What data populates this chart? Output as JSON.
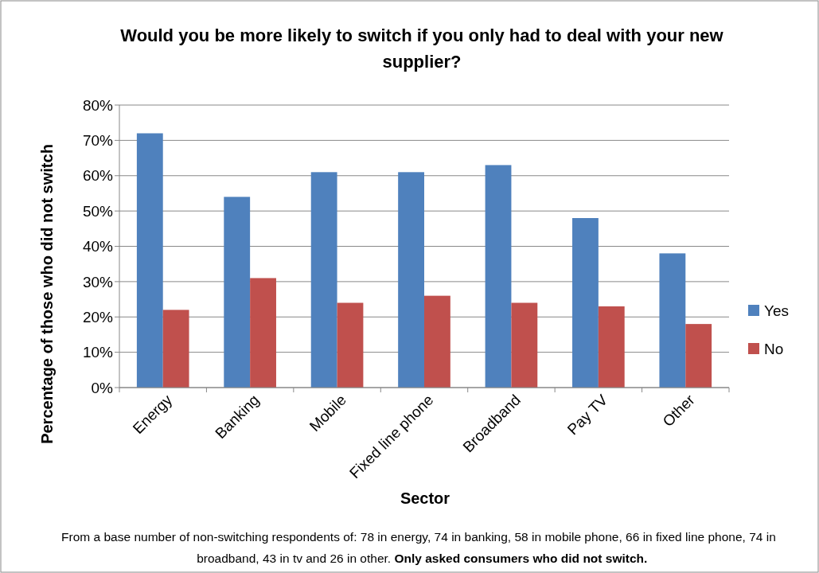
{
  "chart_data": {
    "type": "bar",
    "title": "Would you be more likely to switch if you only had to deal with your new supplier?",
    "xlabel": "Sector",
    "ylabel": "Percentage of those who did not switch",
    "categories": [
      "Energy",
      "Banking",
      "Mobile",
      "Fixed line phone",
      "Broadband",
      "Pay TV",
      "Other"
    ],
    "series": [
      {
        "name": "Yes",
        "color": "#4f81bd",
        "values": [
          72,
          54,
          61,
          61,
          63,
          48,
          38
        ]
      },
      {
        "name": "No",
        "color": "#c0504d",
        "values": [
          22,
          31,
          24,
          26,
          24,
          23,
          18
        ]
      }
    ],
    "ylim": [
      0,
      80
    ],
    "yticks": [
      {
        "value": 0,
        "label": "0%"
      },
      {
        "value": 10,
        "label": "10%"
      },
      {
        "value": 20,
        "label": "20%"
      },
      {
        "value": 30,
        "label": "30%"
      },
      {
        "value": 40,
        "label": "40%"
      },
      {
        "value": 50,
        "label": "50%"
      },
      {
        "value": 60,
        "label": "60%"
      },
      {
        "value": 70,
        "label": "70%"
      },
      {
        "value": 80,
        "label": "80%"
      }
    ],
    "grid": "y",
    "legend": "right",
    "annotations": [
      "From a base number of non-switching respondents of: 78 in energy, 74  in banking, 58  in mobile phone, 66 in fixed line phone, 74  in broadband,  43 in tv and 26 in other.",
      "Only asked consumers who did not switch."
    ]
  }
}
